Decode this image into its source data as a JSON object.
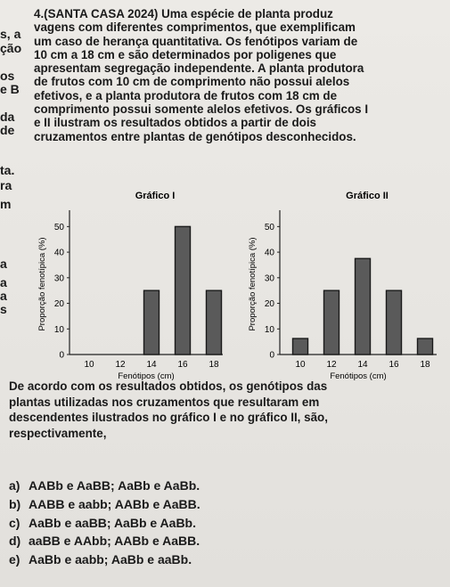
{
  "margin_fragments": [
    "s, a",
    "ção",
    "os",
    "e B",
    "da",
    "de",
    "ta.",
    "ra",
    "m",
    "a",
    "a",
    "a",
    "s"
  ],
  "stem_lines": [
    "4.(SANTA CASA 2024) Uma espécie de planta produz",
    "vagens com diferentes comprimentos, que exemplificam",
    "um caso de herança quantitativa. Os fenótipos variam de",
    "10 cm a 18 cm e são determinados por poligenes que",
    "apresentam segregação independente. A planta produtora",
    "de frutos com 10 cm de comprimento não possui alelos",
    "efetivos, e a planta produtora de frutos com 18 cm de",
    "comprimento possui somente alelos efetivos. Os gráficos I",
    "e II ilustram os resultados obtidos a partir de dois",
    "cruzamentos entre plantas de genótipos desconhecidos."
  ],
  "chart_data": [
    {
      "type": "bar",
      "title": "Gráfico I",
      "categories": [
        "10",
        "12",
        "14",
        "16",
        "18"
      ],
      "values": [
        0,
        0,
        25,
        50,
        25
      ],
      "xlabel": "Fenótipos (cm)",
      "ylabel": "Proporção fenotípica (%)",
      "yticks": [
        "0",
        "10",
        "20",
        "30",
        "40",
        "50"
      ],
      "ylim": [
        0,
        55
      ],
      "bar_color": "#5a5a5a",
      "grid": false
    },
    {
      "type": "bar",
      "title": "Gráfico II",
      "categories": [
        "10",
        "12",
        "14",
        "16",
        "18"
      ],
      "values": [
        6.25,
        25,
        37.5,
        25,
        6.25
      ],
      "xlabel": "Fenótipos (cm)",
      "ylabel": "Proporção fenotípica (%)",
      "yticks": [
        "0",
        "10",
        "20",
        "30",
        "40",
        "50"
      ],
      "ylim": [
        0,
        55
      ],
      "bar_color": "#5a5a5a",
      "grid": false
    }
  ],
  "question_lines": [
    "De acordo com os resultados obtidos, os genótipos das",
    "plantas utilizadas nos cruzamentos que resultaram em",
    "descendentes ilustrados no gráfico I e no gráfico II, são,",
    "respectivamente,"
  ],
  "options": [
    {
      "letter": "a)",
      "text": "AABb e AaBB; AaBb e AaBb."
    },
    {
      "letter": "b)",
      "text": "AABB e aabb; AABb e AaBB."
    },
    {
      "letter": "c)",
      "text": "AaBb e aaBB; AaBb e AaBb."
    },
    {
      "letter": "d)",
      "text": "aaBB e AAbb; AABb e AaBB."
    },
    {
      "letter": "e)",
      "text": "AaBb e aabb; AaBb e aaBb."
    }
  ]
}
